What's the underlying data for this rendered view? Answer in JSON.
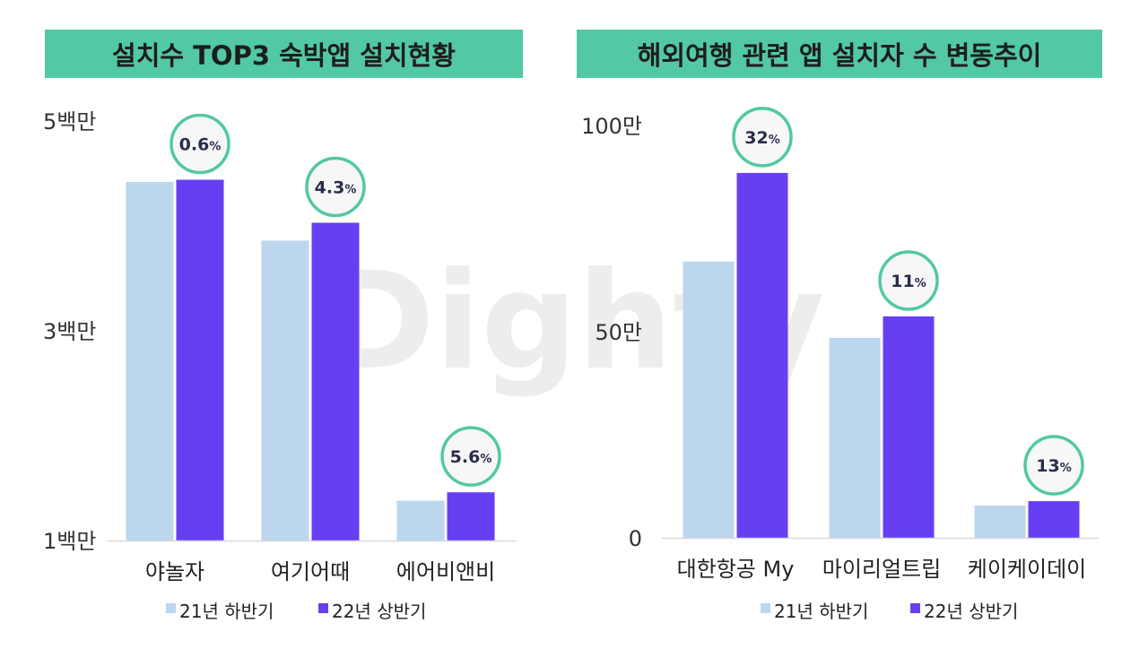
{
  "watermark": "Dighty",
  "colors": {
    "series_21h2": "#bcd6ee",
    "series_22h1": "#673ff2",
    "title_bg": "#52c8a4",
    "badge_border": "#52c8a4",
    "badge_bg": "#f7f7f8",
    "badge_text": "#2a2d4a"
  },
  "chart_data": [
    {
      "type": "bar",
      "title": "설치수 TOP3 숙박앱 설치현황",
      "categories": [
        "야놀자",
        "여기어때",
        "에어비앤비"
      ],
      "series": [
        {
          "name": "21년 하반기",
          "values": [
            4.42,
            3.86,
            1.38
          ]
        },
        {
          "name": "22년 상반기",
          "values": [
            4.44,
            4.03,
            1.46
          ]
        }
      ],
      "unit": "백만",
      "ylim": [
        1,
        5
      ],
      "yticks": [
        {
          "value": 5,
          "label": "5백만"
        },
        {
          "value": 3,
          "label": "3백만"
        },
        {
          "value": 1,
          "label": "1백만"
        }
      ],
      "annotations": [
        {
          "num": "0.6",
          "pct": "%"
        },
        {
          "num": "4.3",
          "pct": "%"
        },
        {
          "num": "5.6",
          "pct": "%"
        }
      ],
      "legend": "bottom",
      "grid": false
    },
    {
      "type": "bar",
      "title": "해외여행 관련 앱 설치자 수 변동추이",
      "categories": [
        "대한항공 My",
        "마이리얼트립",
        "케이케이데이"
      ],
      "series": [
        {
          "name": "21년 하반기",
          "values": [
            67,
            48.5,
            7.8
          ]
        },
        {
          "name": "22년 상반기",
          "values": [
            88.5,
            53.7,
            8.9
          ]
        }
      ],
      "unit": "만",
      "ylim": [
        0,
        100
      ],
      "yticks": [
        {
          "value": 100,
          "label": "100만"
        },
        {
          "value": 50,
          "label": "50만"
        },
        {
          "value": 0,
          "label": "0"
        }
      ],
      "annotations": [
        {
          "num": "32",
          "pct": "%"
        },
        {
          "num": "11",
          "pct": "%"
        },
        {
          "num": "13",
          "pct": "%"
        }
      ],
      "legend": "bottom",
      "grid": false
    }
  ]
}
